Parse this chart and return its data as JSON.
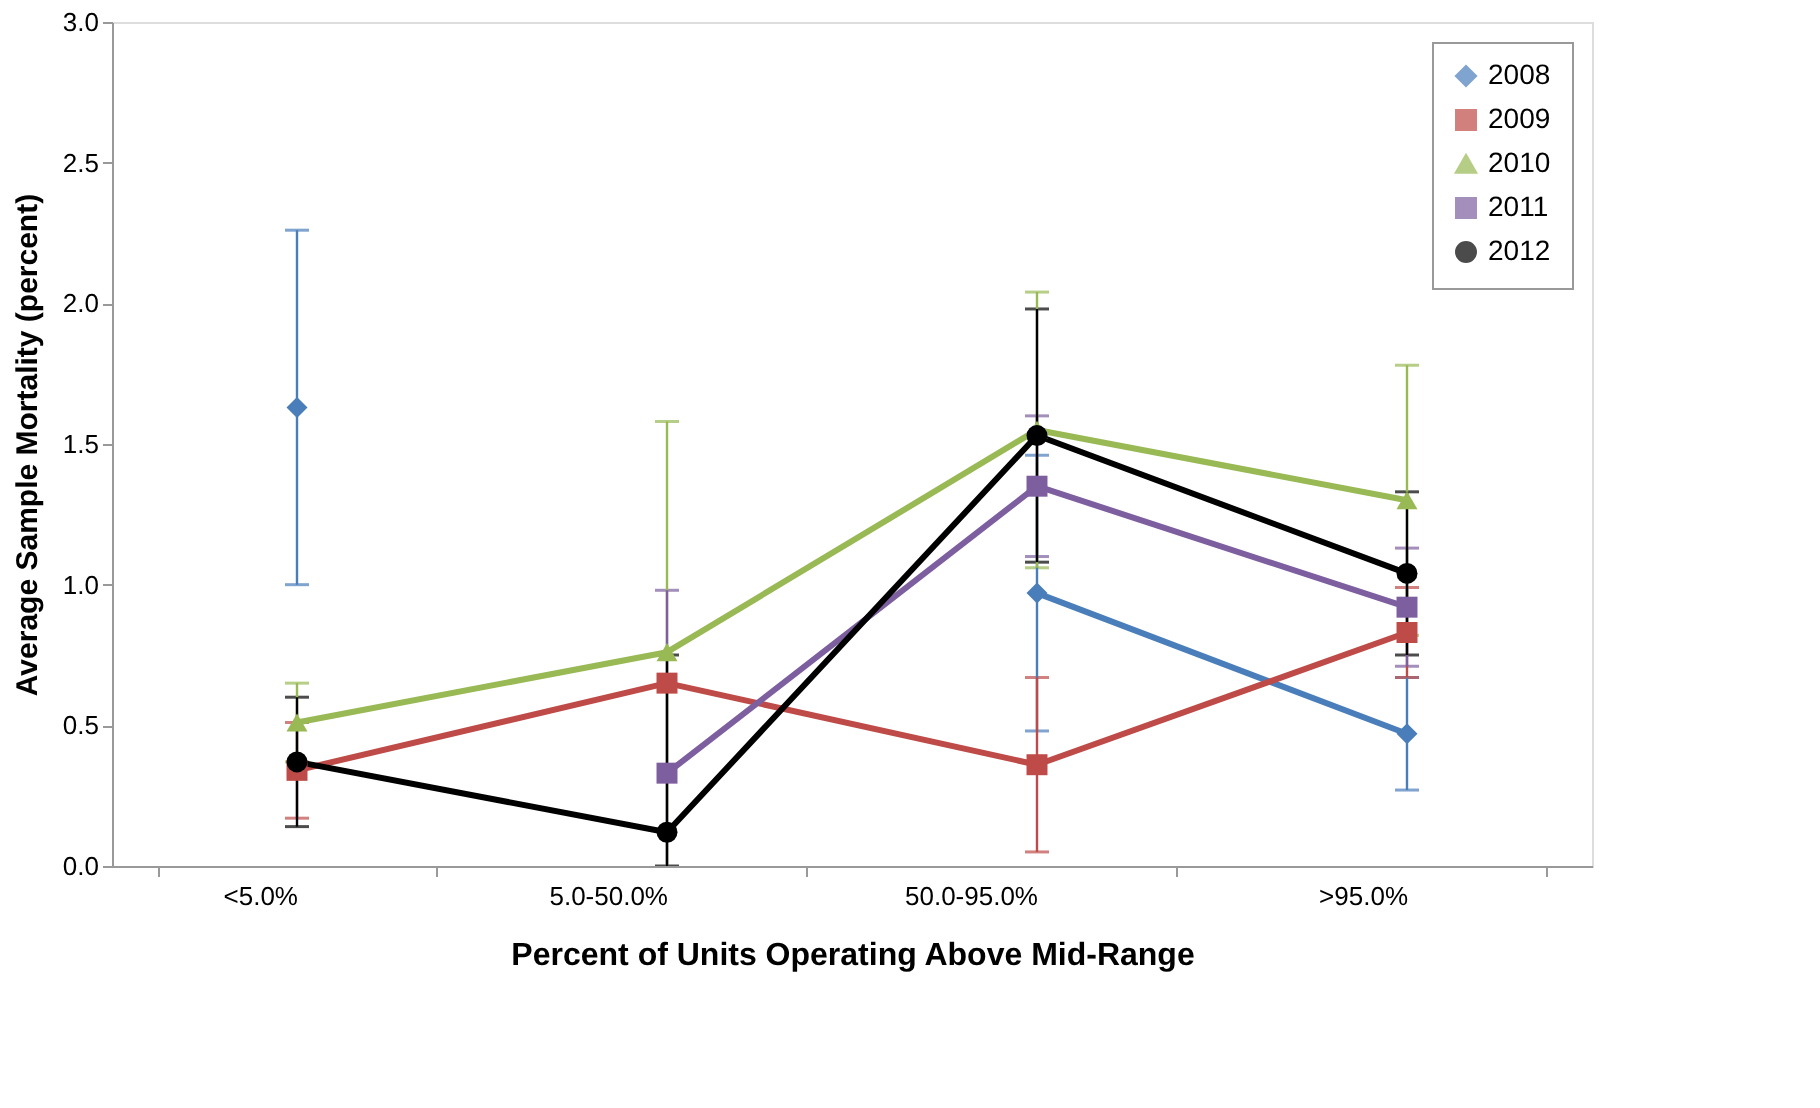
{
  "chart_data": {
    "type": "line",
    "xlabel": "Percent of Units Operating Above Mid-Range",
    "ylabel": "Average Sample Mortality  (percent)",
    "categories": [
      "<5.0%",
      "5.0-50.0%",
      "50.0-95.0%",
      ">95.0%"
    ],
    "series": [
      {
        "name": "2008",
        "color": "#4a7ebb",
        "marker": "diamond",
        "values": [
          1.63,
          null,
          0.97,
          0.47
        ],
        "errors": [
          0.63,
          null,
          0.49,
          0.2
        ]
      },
      {
        "name": "2009",
        "color": "#be4b48",
        "marker": "square",
        "values": [
          0.34,
          0.65,
          0.36,
          0.83
        ],
        "errors": [
          0.17,
          null,
          0.31,
          0.16
        ]
      },
      {
        "name": "2010",
        "color": "#98b954",
        "marker": "triangle",
        "values": [
          0.51,
          0.76,
          1.55,
          1.3
        ],
        "errors": [
          0.14,
          0.82,
          0.49,
          0.48
        ]
      },
      {
        "name": "2011",
        "color": "#7d5fa0",
        "marker": "square",
        "values": [
          null,
          0.33,
          1.35,
          0.92
        ],
        "errors": [
          null,
          0.65,
          0.25,
          0.21
        ]
      },
      {
        "name": "2012",
        "color": "#000000",
        "marker": "circle",
        "values": [
          0.37,
          0.12,
          1.53,
          1.04
        ],
        "errors": [
          0.23,
          [
            0,
            0.75
          ],
          0.45,
          0.29
        ]
      }
    ],
    "ylim": [
      0,
      3
    ],
    "yticks": [
      {
        "value": 0,
        "label": "0.0"
      },
      {
        "value": 0.5,
        "label": "0.5"
      },
      {
        "value": 1,
        "label": "1.0"
      },
      {
        "value": 1.5,
        "label": "1.5"
      },
      {
        "value": 2,
        "label": "2.0"
      },
      {
        "value": 2.5,
        "label": "2.5"
      },
      {
        "value": 3,
        "label": "3.0"
      }
    ],
    "grid": false,
    "legend": "top right",
    "line_style": "solid"
  }
}
